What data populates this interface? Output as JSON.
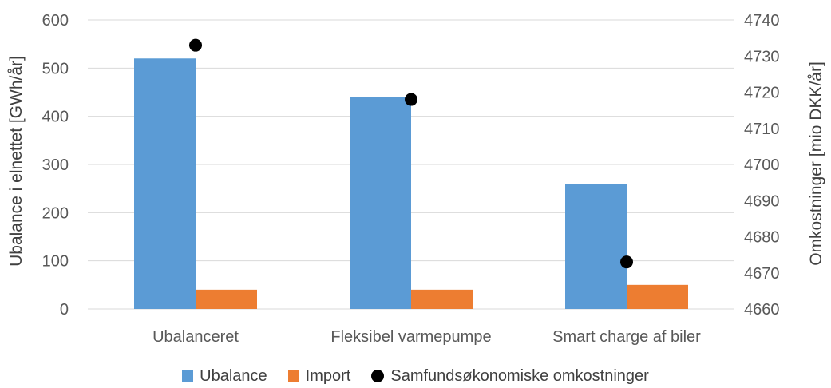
{
  "chart_data": {
    "type": "bar",
    "categories": [
      "Ubalanceret",
      "Fleksibel varmepumpe",
      "Smart charge af biler"
    ],
    "series": [
      {
        "name": "Ubalance",
        "values": [
          520,
          440,
          260
        ],
        "axis": "left",
        "color": "#5B9BD5"
      },
      {
        "name": "Import",
        "values": [
          40,
          40,
          50
        ],
        "axis": "left",
        "color": "#ED7D31"
      },
      {
        "name": "Samfundsøkonomiske omkostninger",
        "values": [
          4733,
          4718,
          4673
        ],
        "axis": "right",
        "type": "scatter",
        "color": "#000000"
      }
    ],
    "ylabel": "Ubalance i elnettet [GWh/år]",
    "y2label": "Omkostninger [mio DKK/år]",
    "ylim": [
      0,
      600
    ],
    "y2lim": [
      4660,
      4740
    ],
    "yticks": [
      "0",
      "100",
      "200",
      "300",
      "400",
      "500",
      "600"
    ],
    "y2ticks": [
      "4660",
      "4670",
      "4680",
      "4690",
      "4700",
      "4710",
      "4720",
      "4730",
      "4740"
    ],
    "grid": true,
    "legend": "bottom"
  }
}
